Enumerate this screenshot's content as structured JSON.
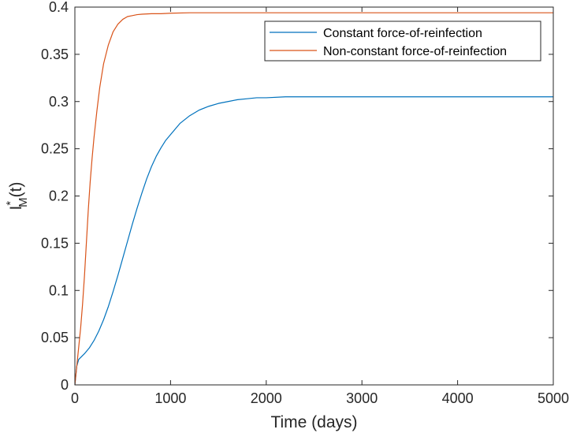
{
  "chart_data": {
    "type": "line",
    "title": "",
    "xlabel": "Time (days)",
    "ylabel": {
      "base": "I",
      "superscript": "*",
      "subscript": "M",
      "suffix": "(t)"
    },
    "xlim": [
      0,
      5000
    ],
    "ylim": [
      0,
      0.4
    ],
    "x_ticks": [
      0,
      1000,
      2000,
      3000,
      4000,
      5000
    ],
    "x_tick_labels": [
      "0",
      "1000",
      "2000",
      "3000",
      "4000",
      "5000"
    ],
    "y_ticks": [
      0,
      0.05,
      0.1,
      0.15,
      0.2,
      0.25,
      0.3,
      0.35,
      0.4
    ],
    "y_tick_labels": [
      "0",
      "0.05",
      "0.1",
      "0.15",
      "0.2",
      "0.25",
      "0.3",
      "0.35",
      "0.4"
    ],
    "grid": false,
    "legend_position": "top-right",
    "series": [
      {
        "name": "Constant force-of-reinfection",
        "color": "#0072bd",
        "x": [
          0,
          20,
          40,
          60,
          100,
          150,
          200,
          250,
          300,
          350,
          400,
          450,
          500,
          550,
          600,
          650,
          700,
          750,
          800,
          850,
          900,
          950,
          1000,
          1100,
          1200,
          1300,
          1400,
          1500,
          1600,
          1700,
          1800,
          1900,
          2000,
          2200,
          2400,
          2600,
          2800,
          3000,
          3500,
          4000,
          4500,
          5000
        ],
        "y": [
          0,
          0.02,
          0.027,
          0.029,
          0.033,
          0.039,
          0.047,
          0.057,
          0.069,
          0.083,
          0.099,
          0.116,
          0.134,
          0.152,
          0.17,
          0.187,
          0.203,
          0.218,
          0.231,
          0.242,
          0.251,
          0.259,
          0.265,
          0.277,
          0.285,
          0.291,
          0.295,
          0.298,
          0.3,
          0.302,
          0.303,
          0.304,
          0.304,
          0.305,
          0.305,
          0.305,
          0.305,
          0.305,
          0.305,
          0.305,
          0.305,
          0.305
        ]
      },
      {
        "name": "Non-constant force-of-reinfection",
        "color": "#d95319",
        "x": [
          0,
          20,
          40,
          60,
          80,
          100,
          120,
          140,
          160,
          180,
          200,
          230,
          260,
          300,
          350,
          400,
          450,
          500,
          550,
          600,
          650,
          700,
          800,
          900,
          1000,
          1200,
          1500,
          2000,
          3000,
          4000,
          5000
        ],
        "y": [
          0,
          0.02,
          0.04,
          0.06,
          0.085,
          0.115,
          0.15,
          0.185,
          0.215,
          0.24,
          0.262,
          0.29,
          0.315,
          0.34,
          0.36,
          0.374,
          0.382,
          0.387,
          0.39,
          0.391,
          0.392,
          0.3925,
          0.393,
          0.393,
          0.3935,
          0.394,
          0.394,
          0.394,
          0.394,
          0.394,
          0.394
        ]
      }
    ]
  }
}
